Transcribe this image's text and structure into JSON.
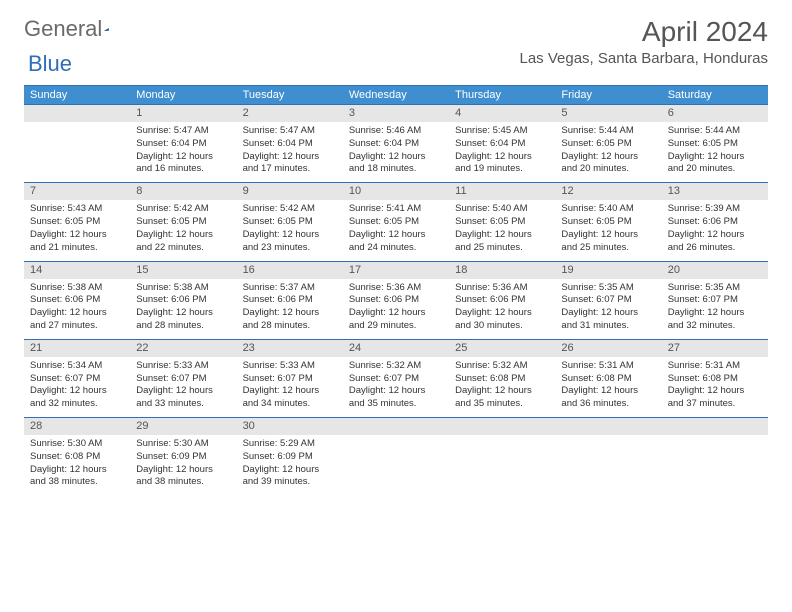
{
  "logo": {
    "word1": "General",
    "word2": "Blue"
  },
  "header": {
    "month": "April 2024",
    "location": "Las Vegas, Santa Barbara, Honduras"
  },
  "colors": {
    "header_bar": "#3e8ed0",
    "rule": "#2f6fb5",
    "daynum_bg": "#e6e6e6",
    "text": "#333333",
    "muted": "#555555"
  },
  "day_names": [
    "Sunday",
    "Monday",
    "Tuesday",
    "Wednesday",
    "Thursday",
    "Friday",
    "Saturday"
  ],
  "weeks": [
    [
      null,
      {
        "n": "1",
        "sunrise": "5:47 AM",
        "sunset": "6:04 PM",
        "daylight": "12 hours and 16 minutes."
      },
      {
        "n": "2",
        "sunrise": "5:47 AM",
        "sunset": "6:04 PM",
        "daylight": "12 hours and 17 minutes."
      },
      {
        "n": "3",
        "sunrise": "5:46 AM",
        "sunset": "6:04 PM",
        "daylight": "12 hours and 18 minutes."
      },
      {
        "n": "4",
        "sunrise": "5:45 AM",
        "sunset": "6:04 PM",
        "daylight": "12 hours and 19 minutes."
      },
      {
        "n": "5",
        "sunrise": "5:44 AM",
        "sunset": "6:05 PM",
        "daylight": "12 hours and 20 minutes."
      },
      {
        "n": "6",
        "sunrise": "5:44 AM",
        "sunset": "6:05 PM",
        "daylight": "12 hours and 20 minutes."
      }
    ],
    [
      {
        "n": "7",
        "sunrise": "5:43 AM",
        "sunset": "6:05 PM",
        "daylight": "12 hours and 21 minutes."
      },
      {
        "n": "8",
        "sunrise": "5:42 AM",
        "sunset": "6:05 PM",
        "daylight": "12 hours and 22 minutes."
      },
      {
        "n": "9",
        "sunrise": "5:42 AM",
        "sunset": "6:05 PM",
        "daylight": "12 hours and 23 minutes."
      },
      {
        "n": "10",
        "sunrise": "5:41 AM",
        "sunset": "6:05 PM",
        "daylight": "12 hours and 24 minutes."
      },
      {
        "n": "11",
        "sunrise": "5:40 AM",
        "sunset": "6:05 PM",
        "daylight": "12 hours and 25 minutes."
      },
      {
        "n": "12",
        "sunrise": "5:40 AM",
        "sunset": "6:05 PM",
        "daylight": "12 hours and 25 minutes."
      },
      {
        "n": "13",
        "sunrise": "5:39 AM",
        "sunset": "6:06 PM",
        "daylight": "12 hours and 26 minutes."
      }
    ],
    [
      {
        "n": "14",
        "sunrise": "5:38 AM",
        "sunset": "6:06 PM",
        "daylight": "12 hours and 27 minutes."
      },
      {
        "n": "15",
        "sunrise": "5:38 AM",
        "sunset": "6:06 PM",
        "daylight": "12 hours and 28 minutes."
      },
      {
        "n": "16",
        "sunrise": "5:37 AM",
        "sunset": "6:06 PM",
        "daylight": "12 hours and 28 minutes."
      },
      {
        "n": "17",
        "sunrise": "5:36 AM",
        "sunset": "6:06 PM",
        "daylight": "12 hours and 29 minutes."
      },
      {
        "n": "18",
        "sunrise": "5:36 AM",
        "sunset": "6:06 PM",
        "daylight": "12 hours and 30 minutes."
      },
      {
        "n": "19",
        "sunrise": "5:35 AM",
        "sunset": "6:07 PM",
        "daylight": "12 hours and 31 minutes."
      },
      {
        "n": "20",
        "sunrise": "5:35 AM",
        "sunset": "6:07 PM",
        "daylight": "12 hours and 32 minutes."
      }
    ],
    [
      {
        "n": "21",
        "sunrise": "5:34 AM",
        "sunset": "6:07 PM",
        "daylight": "12 hours and 32 minutes."
      },
      {
        "n": "22",
        "sunrise": "5:33 AM",
        "sunset": "6:07 PM",
        "daylight": "12 hours and 33 minutes."
      },
      {
        "n": "23",
        "sunrise": "5:33 AM",
        "sunset": "6:07 PM",
        "daylight": "12 hours and 34 minutes."
      },
      {
        "n": "24",
        "sunrise": "5:32 AM",
        "sunset": "6:07 PM",
        "daylight": "12 hours and 35 minutes."
      },
      {
        "n": "25",
        "sunrise": "5:32 AM",
        "sunset": "6:08 PM",
        "daylight": "12 hours and 35 minutes."
      },
      {
        "n": "26",
        "sunrise": "5:31 AM",
        "sunset": "6:08 PM",
        "daylight": "12 hours and 36 minutes."
      },
      {
        "n": "27",
        "sunrise": "5:31 AM",
        "sunset": "6:08 PM",
        "daylight": "12 hours and 37 minutes."
      }
    ],
    [
      {
        "n": "28",
        "sunrise": "5:30 AM",
        "sunset": "6:08 PM",
        "daylight": "12 hours and 38 minutes."
      },
      {
        "n": "29",
        "sunrise": "5:30 AM",
        "sunset": "6:09 PM",
        "daylight": "12 hours and 38 minutes."
      },
      {
        "n": "30",
        "sunrise": "5:29 AM",
        "sunset": "6:09 PM",
        "daylight": "12 hours and 39 minutes."
      },
      null,
      null,
      null,
      null
    ]
  ],
  "labels": {
    "sunrise": "Sunrise: ",
    "sunset": "Sunset: ",
    "daylight": "Daylight: "
  }
}
